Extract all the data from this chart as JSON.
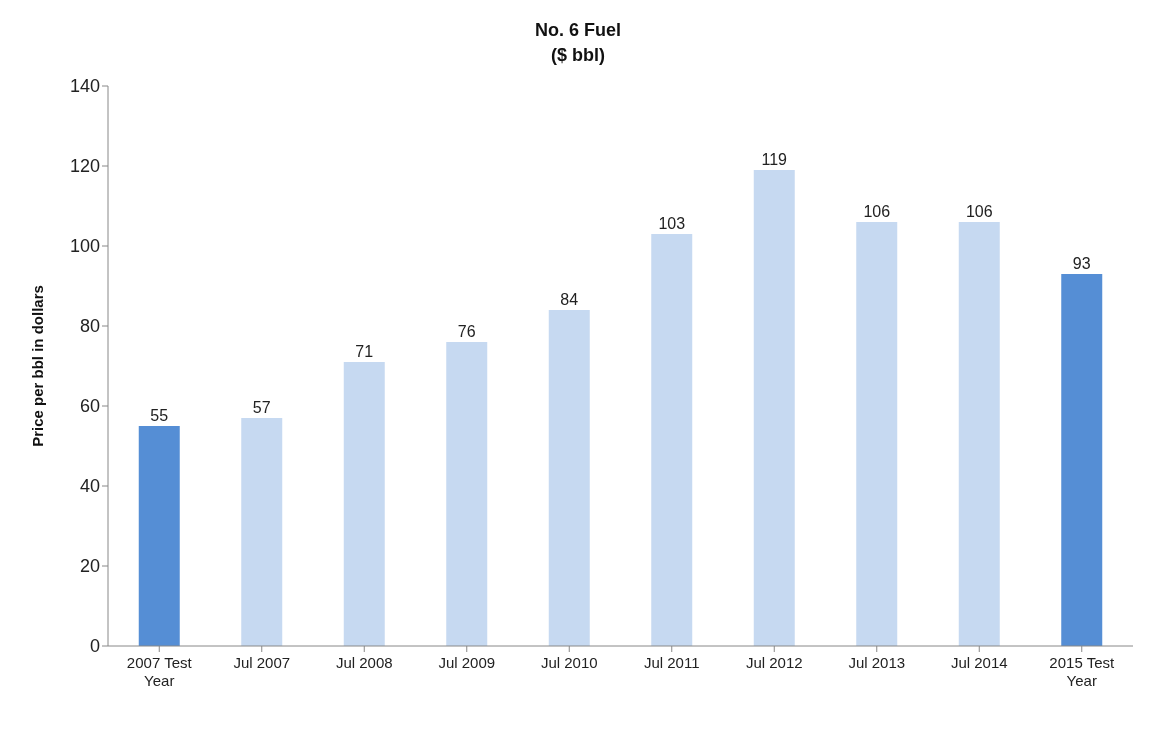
{
  "chart_data": {
    "type": "bar",
    "title": "No. 6 Fuel",
    "subtitle": "($ bbl)",
    "ylabel": "Price per bbl in dollars",
    "categories": [
      "2007 Test Year",
      "Jul 2007",
      "Jul 2008",
      "Jul 2009",
      "Jul 2010",
      "Jul 2011",
      "Jul 2012",
      "Jul 2013",
      "Jul 2014",
      "2015 Test Year"
    ],
    "values": [
      55,
      57,
      71,
      76,
      84,
      103,
      119,
      106,
      106,
      93
    ],
    "colors": [
      "#558ed5",
      "#c6d9f1",
      "#c6d9f1",
      "#c6d9f1",
      "#c6d9f1",
      "#c6d9f1",
      "#c6d9f1",
      "#c6d9f1",
      "#c6d9f1",
      "#558ed5"
    ],
    "ylim": [
      0,
      140
    ],
    "yticks": [
      0,
      20,
      40,
      60,
      80,
      100,
      120,
      140
    ],
    "grid": false,
    "data_labels": true
  }
}
